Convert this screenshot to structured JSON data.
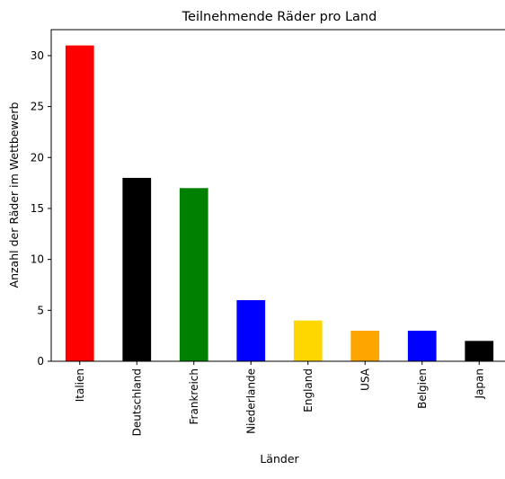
{
  "chart_data": {
    "type": "bar",
    "title": "Teilnehmende Räder pro Land",
    "xlabel": "Länder",
    "ylabel": "Anzahl der Räder im Wettbewerb",
    "categories": [
      "Italien",
      "Deutschland",
      "Frankreich",
      "Niederlande",
      "England",
      "USA",
      "Belgien",
      "Japan"
    ],
    "values": [
      31,
      18,
      17,
      6,
      4,
      3,
      3,
      2
    ],
    "colors": [
      "#ff0000",
      "#000000",
      "#008000",
      "#0000ff",
      "#ffd700",
      "#ffa500",
      "#0000ff",
      "#000000"
    ],
    "ylim": [
      0,
      32.55
    ],
    "yticks": [
      0,
      5,
      10,
      15,
      20,
      25,
      30
    ],
    "grid": false,
    "legend": "none"
  }
}
